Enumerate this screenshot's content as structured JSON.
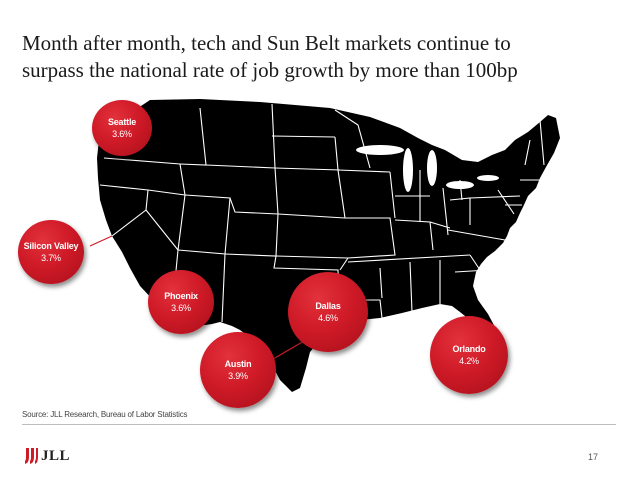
{
  "slide": {
    "title_line1": "Month after month, tech and Sun Belt markets continue to",
    "title_line2": "surpass the national rate of job growth by more than 100bp",
    "source": "Source: JLL Research, Bureau of Labor Statistics",
    "page_number": "17",
    "logo_text": "JLL"
  },
  "markets": [
    {
      "name": "Seattle",
      "growth": "3.6%"
    },
    {
      "name": "Silicon Valley",
      "growth": "3.7%"
    },
    {
      "name": "Phoenix",
      "growth": "3.6%"
    },
    {
      "name": "Dallas",
      "growth": "4.6%"
    },
    {
      "name": "Austin",
      "growth": "3.9%"
    },
    {
      "name": "Orlando",
      "growth": "4.2%"
    }
  ],
  "colors": {
    "accent": "#cf1a27",
    "map_fill": "#000000",
    "map_borders": "#ffffff"
  }
}
